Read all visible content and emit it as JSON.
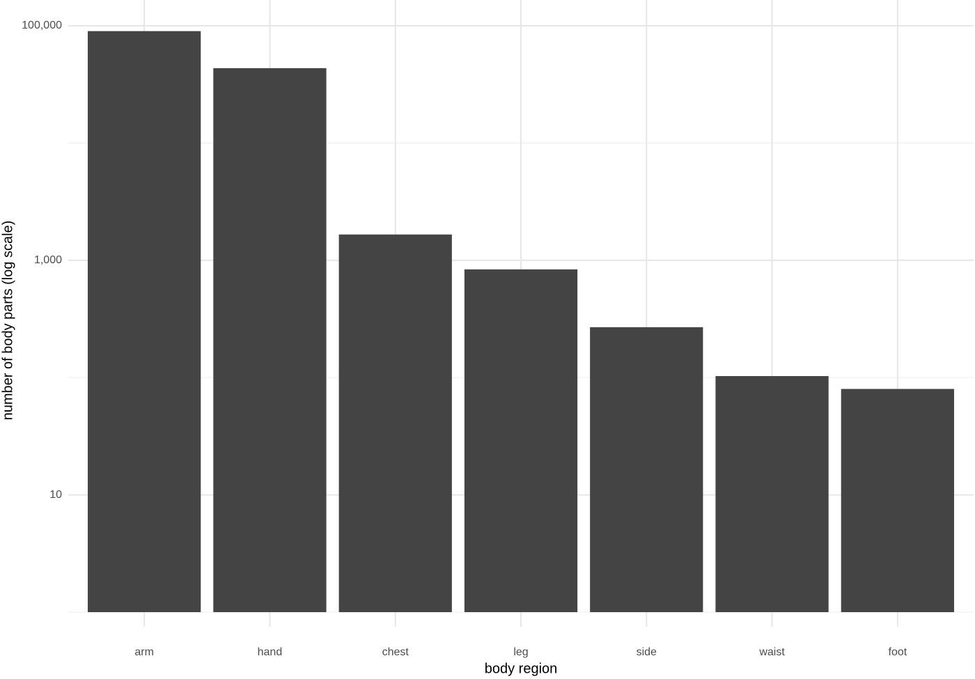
{
  "chart_data": {
    "type": "bar",
    "x_label": "body region",
    "y_label": "number of body parts (log scale)",
    "categories": [
      "arm",
      "hand",
      "chest",
      "leg",
      "side",
      "waist",
      "foot"
    ],
    "values": [
      90000,
      43500,
      1660,
      837,
      269,
      103,
      80
    ],
    "color": "#444444",
    "log_scale": true,
    "ylim": [
      1,
      165800
    ],
    "yticks": [
      {
        "value": 10,
        "label": "10"
      },
      {
        "value": 1000,
        "label": "1,000"
      },
      {
        "value": 100000,
        "label": "100,000"
      }
    ],
    "minor_grid": [
      1,
      100,
      10000
    ],
    "grid": true
  }
}
